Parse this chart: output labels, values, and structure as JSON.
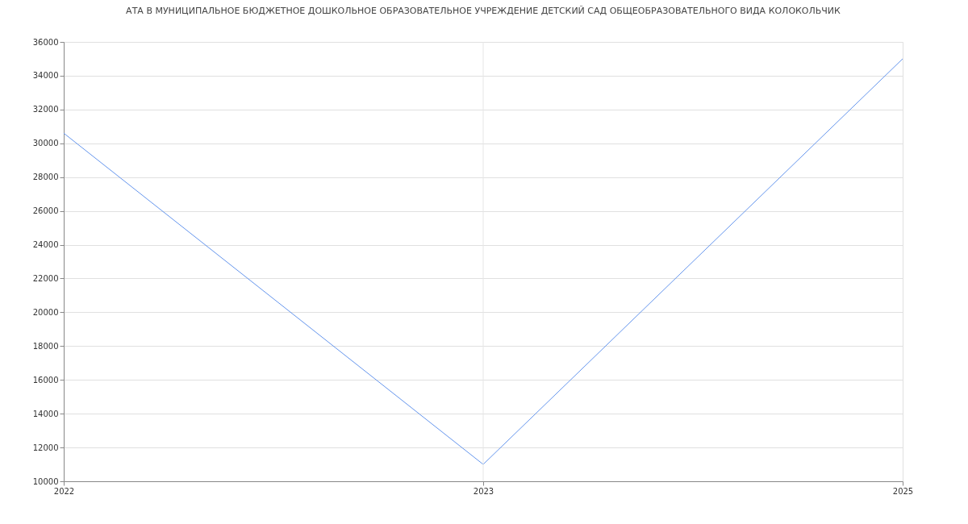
{
  "chart_data": {
    "type": "line",
    "title": "АТА В МУНИЦИПАЛЬНОЕ БЮДЖЕТНОЕ ДОШКОЛЬНОЕ ОБРАЗОВАТЕЛЬНОЕ УЧРЕЖДЕНИЕ ДЕТСКИЙ САД ОБЩЕОБРАЗОВАТЕЛЬНОГО ВИДА КОЛОКОЛЬЧИК",
    "categories": [
      "2022",
      "2023",
      "2025"
    ],
    "series": [
      {
        "color": "#6495ed",
        "values": [
          30600,
          11000,
          35000
        ]
      }
    ],
    "ylim": [
      10000,
      36000
    ],
    "yticks": [
      10000,
      12000,
      14000,
      16000,
      18000,
      20000,
      22000,
      24000,
      26000,
      28000,
      30000,
      32000,
      34000,
      36000
    ],
    "grid": "y",
    "ref_lines": [
      {
        "axis": "x",
        "value": "2023",
        "color": "#e6e6e6"
      }
    ],
    "legend": false,
    "marker": "none",
    "line_style": "solid"
  }
}
